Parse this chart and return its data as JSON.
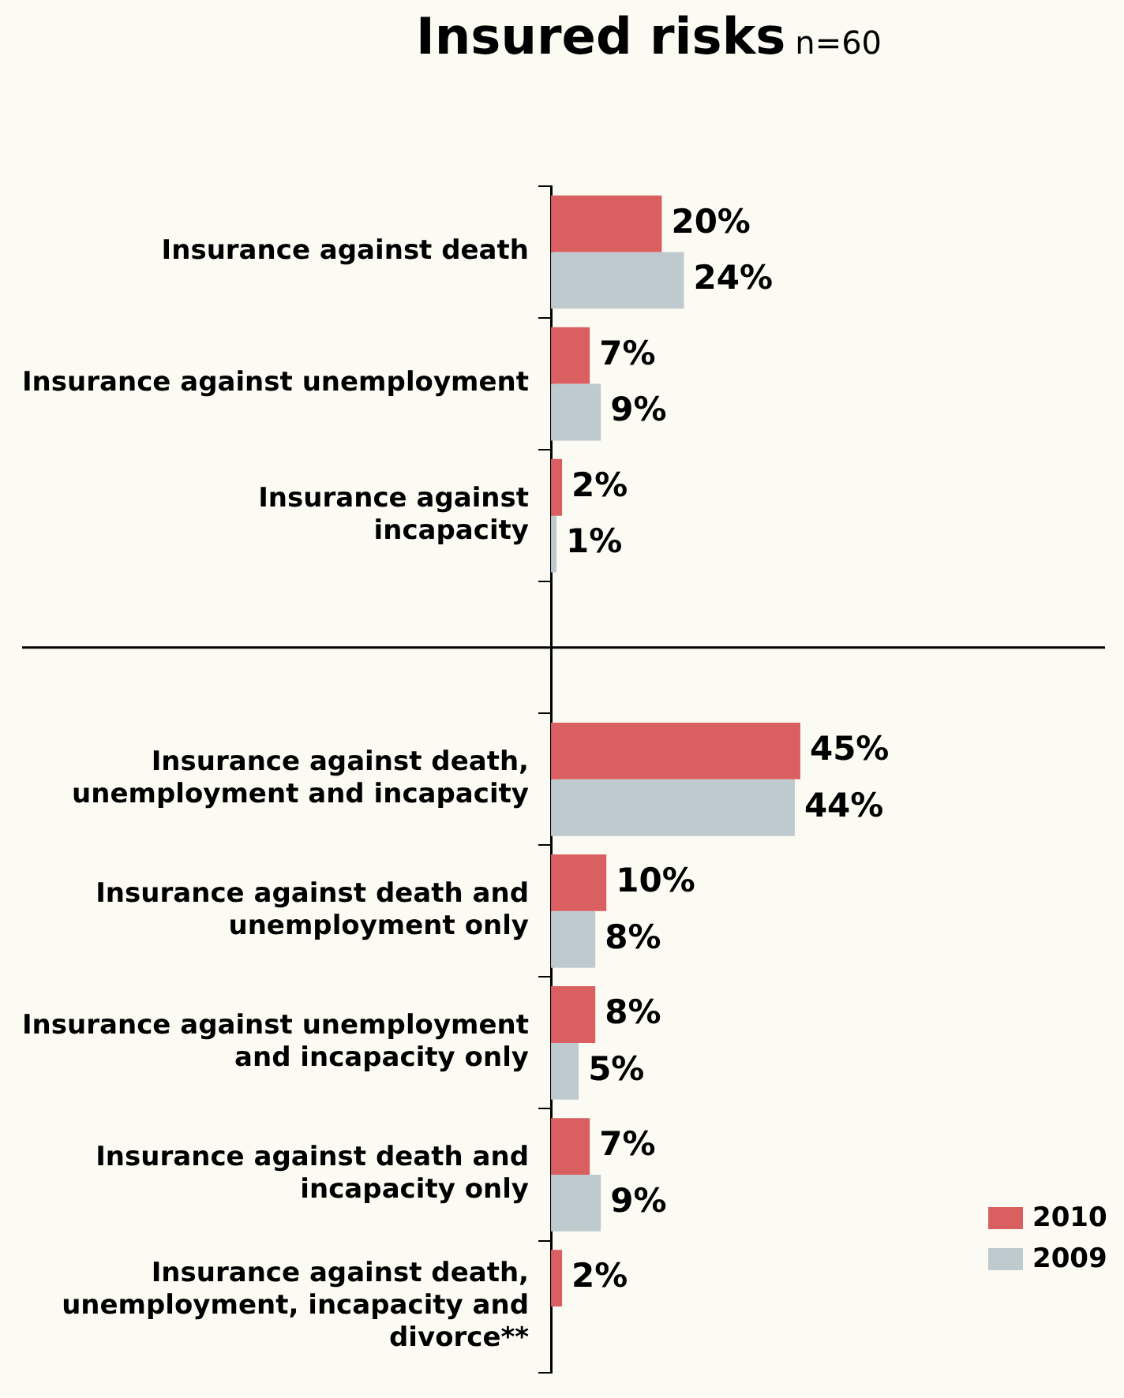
{
  "chart_data": {
    "type": "bar",
    "orientation": "horizontal",
    "title": "Insured risks",
    "subtitle": "n=60",
    "categories": [
      "Insurance against death",
      "Insurance against unemployment",
      "Insurance against\nincapacity",
      null,
      "Insurance against death,\nunemployment and incapacity",
      "Insurance against death and\nunemployment only",
      "Insurance against unemployment\nand incapacity only",
      "Insurance against death and\nincapacity only",
      "Insurance against death,\nunemployment, incapacity and\ndivorce**"
    ],
    "series": [
      {
        "name": "2010",
        "color": "#d95f60",
        "values": [
          20,
          7,
          2,
          null,
          45,
          10,
          8,
          7,
          2
        ],
        "value_labels": [
          "20%",
          "7%",
          "2%",
          null,
          "45%",
          "10%",
          "8%",
          "7%",
          "2%"
        ]
      },
      {
        "name": "2009",
        "color": "#bfcacf",
        "values": [
          24,
          9,
          1,
          null,
          44,
          8,
          5,
          9,
          null
        ],
        "value_labels": [
          "24%",
          "9%",
          "1%",
          null,
          "44%",
          "8%",
          "5%",
          "9%",
          null
        ]
      }
    ],
    "xlim": [
      0,
      100
    ],
    "tick_labels": "y",
    "legend": "bottom right",
    "ref_lines": [
      {
        "axis": "y",
        "color": "#000000"
      }
    ]
  }
}
